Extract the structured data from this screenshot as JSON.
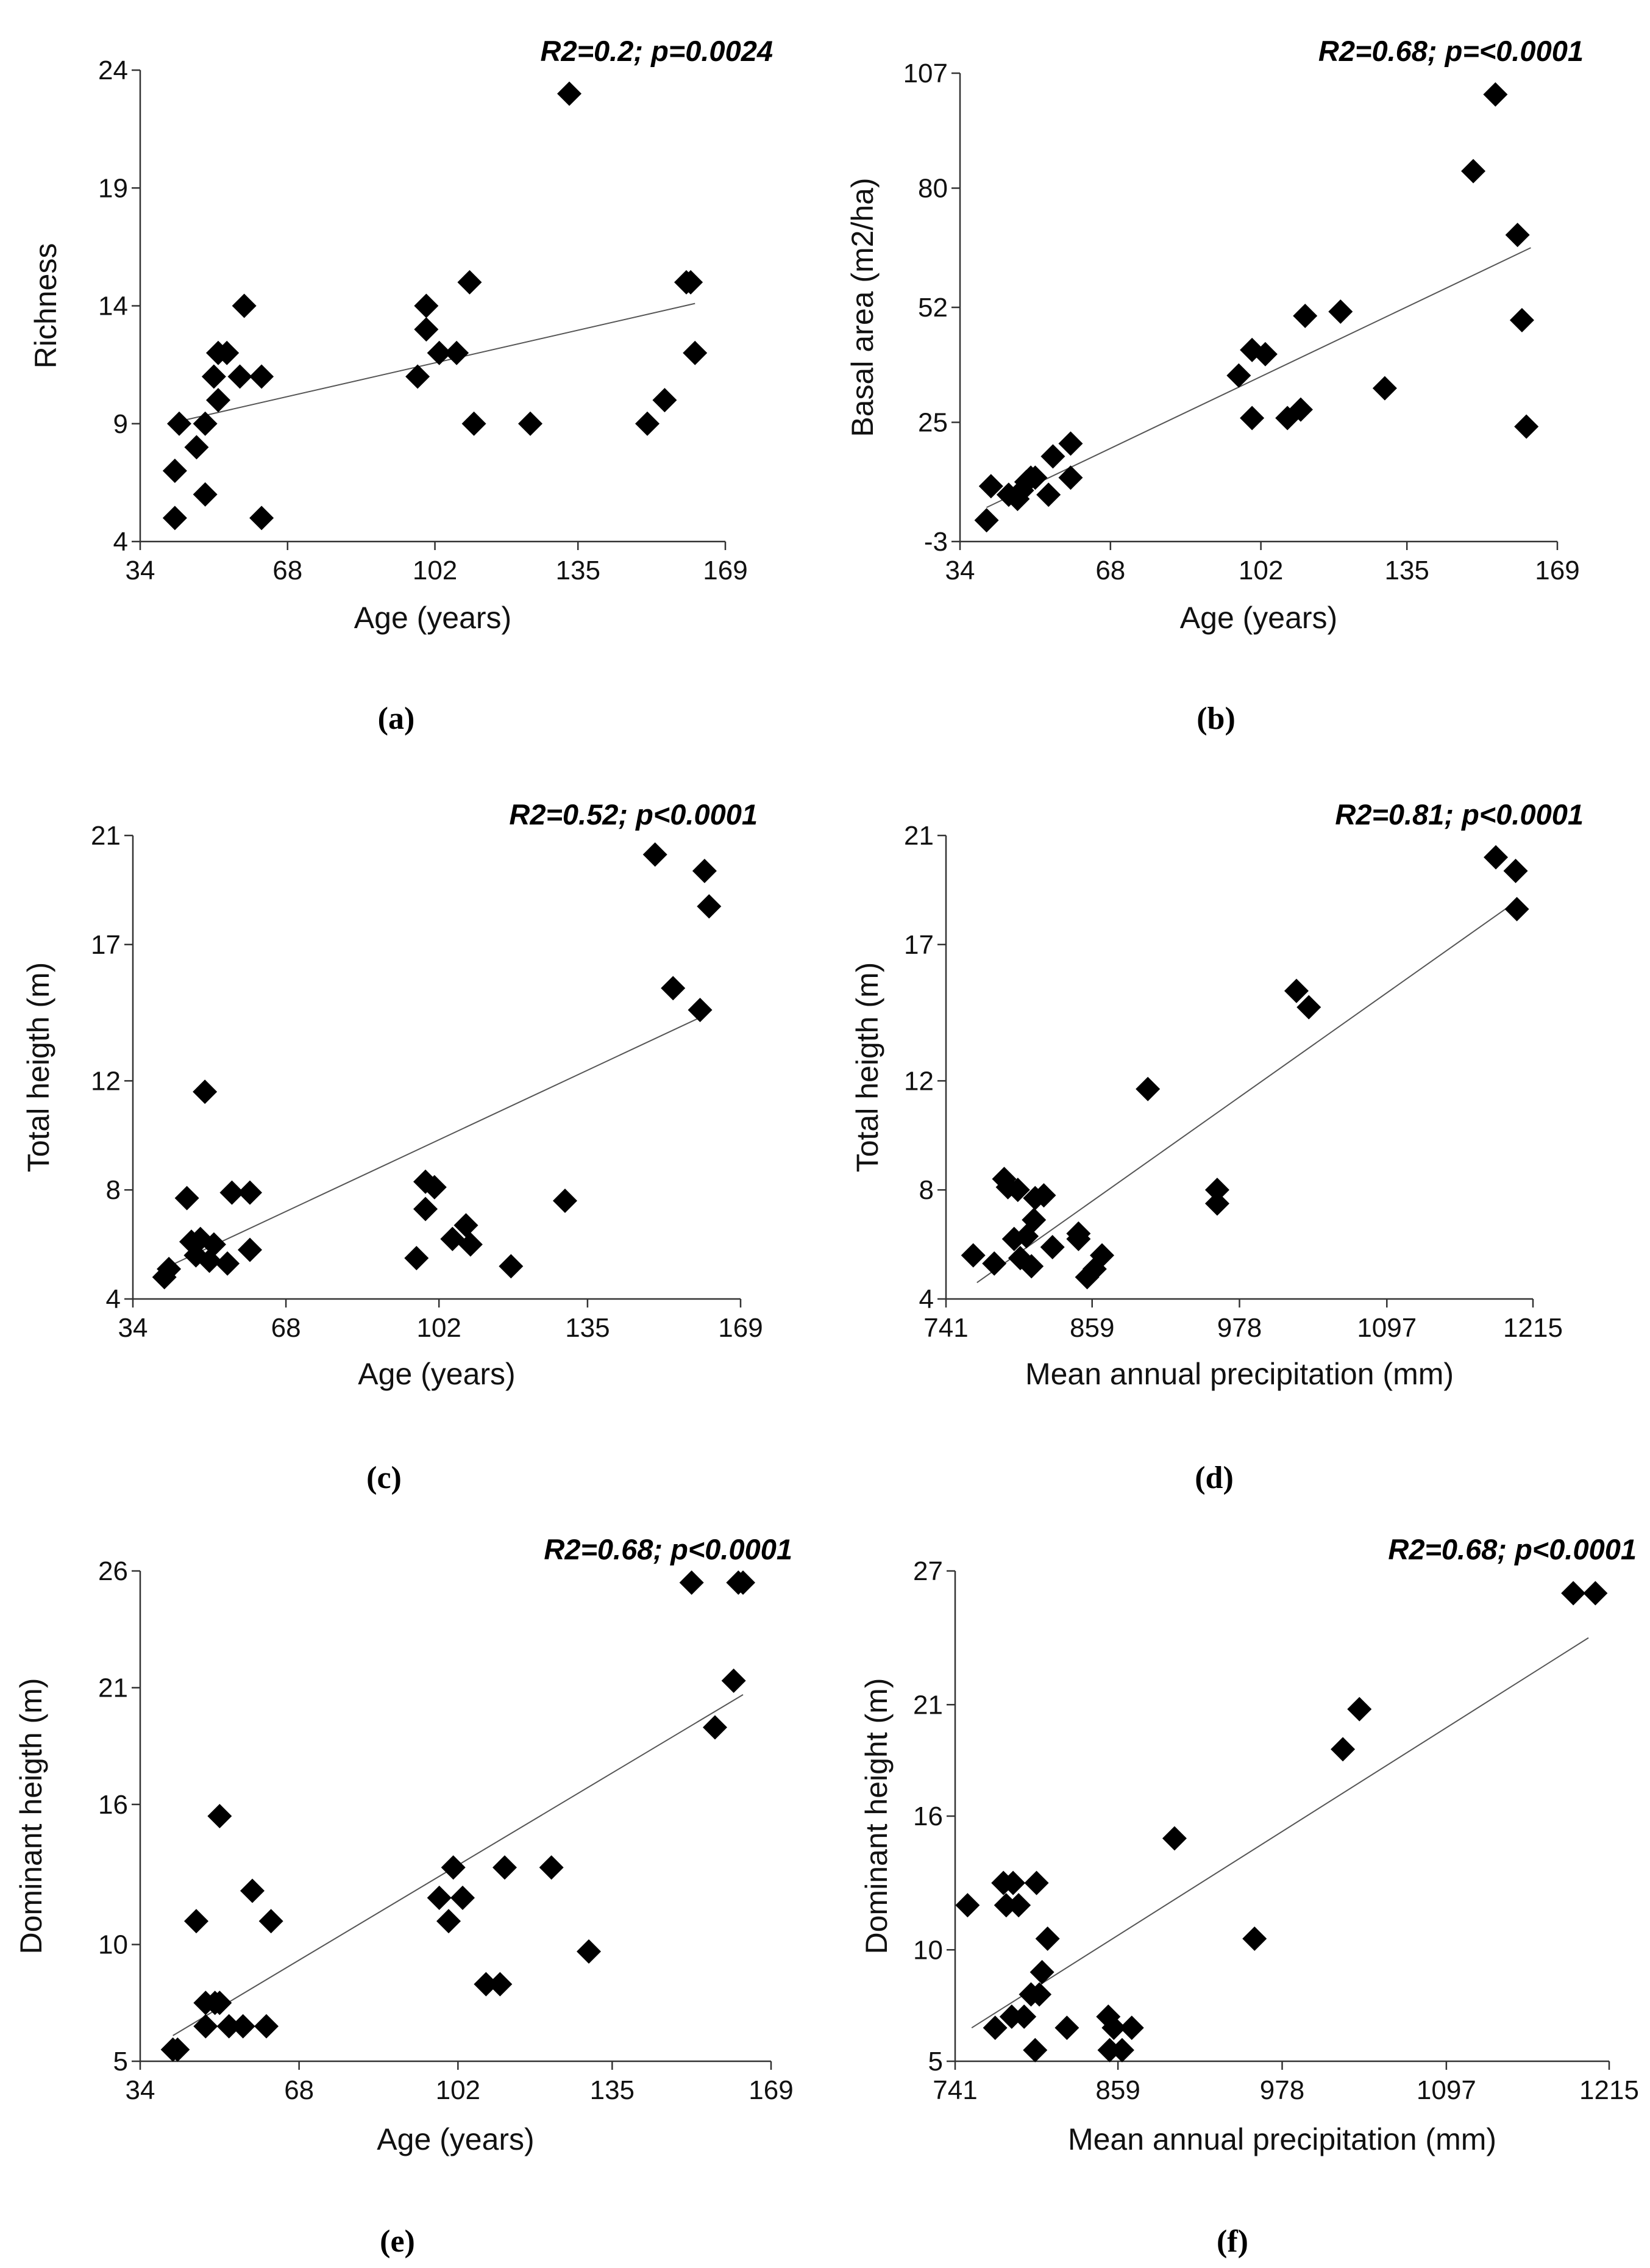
{
  "chart_data": [
    {
      "type": "scatter",
      "panel": "(a)",
      "stat": "R2=0.2; p=0.0024",
      "xlabel": "Age (years)",
      "ylabel": "Richness",
      "xticks": [
        34,
        68,
        102,
        135,
        169
      ],
      "yticks": [
        4,
        9,
        14,
        19,
        24
      ],
      "xlim": [
        34,
        169
      ],
      "ylim": [
        4,
        24
      ],
      "points": [
        [
          42,
          5
        ],
        [
          42,
          7
        ],
        [
          43,
          9
        ],
        [
          47,
          8
        ],
        [
          49,
          9
        ],
        [
          49,
          6
        ],
        [
          51,
          11
        ],
        [
          52,
          12
        ],
        [
          52,
          10
        ],
        [
          54,
          12
        ],
        [
          57,
          11
        ],
        [
          58,
          14
        ],
        [
          62,
          11
        ],
        [
          62,
          5
        ],
        [
          98,
          11
        ],
        [
          100,
          14
        ],
        [
          100,
          13
        ],
        [
          103,
          12
        ],
        [
          107,
          12
        ],
        [
          110,
          15
        ],
        [
          111,
          9
        ],
        [
          124,
          9
        ],
        [
          133,
          23
        ],
        [
          151,
          9
        ],
        [
          155,
          10
        ],
        [
          160,
          15
        ],
        [
          161,
          15
        ],
        [
          162,
          12
        ]
      ],
      "trendline": [
        [
          43,
          9.1
        ],
        [
          162,
          14.1
        ]
      ]
    },
    {
      "type": "scatter",
      "panel": "(b)",
      "stat": "R2=0.68; p=<0.0001",
      "xlabel": "Age (years)",
      "ylabel": "Basal area (m2/ha)",
      "xticks": [
        34,
        68,
        102,
        135,
        169
      ],
      "yticks": [
        -3,
        25,
        52,
        80,
        107
      ],
      "xlim": [
        34,
        169
      ],
      "ylim": [
        -3,
        107
      ],
      "points": [
        [
          40,
          2
        ],
        [
          41,
          10
        ],
        [
          45,
          8
        ],
        [
          47,
          7
        ],
        [
          48,
          9
        ],
        [
          49,
          11
        ],
        [
          50,
          12
        ],
        [
          51,
          12
        ],
        [
          54,
          8
        ],
        [
          55,
          17
        ],
        [
          59,
          20
        ],
        [
          59,
          12
        ],
        [
          97,
          36
        ],
        [
          100,
          42
        ],
        [
          100,
          26
        ],
        [
          103,
          41
        ],
        [
          108,
          26
        ],
        [
          111,
          28
        ],
        [
          112,
          50
        ],
        [
          120,
          51
        ],
        [
          130,
          33
        ],
        [
          150,
          84
        ],
        [
          155,
          102
        ],
        [
          160,
          69
        ],
        [
          161,
          49
        ],
        [
          162,
          24
        ]
      ],
      "trendline": [
        [
          40,
          5
        ],
        [
          163,
          66
        ]
      ]
    },
    {
      "type": "scatter",
      "panel": "(c)",
      "stat": "R2=0.52; p<0.0001",
      "xlabel": "Age (years)",
      "ylabel": "Total heigth (m)",
      "xticks": [
        34,
        68,
        102,
        135,
        169
      ],
      "yticks": [
        4,
        8,
        12,
        17,
        21
      ],
      "xlim": [
        34,
        169
      ],
      "ylim": [
        4,
        21
      ],
      "points": [
        [
          41,
          4.8
        ],
        [
          42,
          5.1
        ],
        [
          46,
          7.7
        ],
        [
          47,
          6.1
        ],
        [
          48,
          5.6
        ],
        [
          49,
          6.2
        ],
        [
          50,
          11.6
        ],
        [
          51,
          5.4
        ],
        [
          52,
          6
        ],
        [
          55,
          5.3
        ],
        [
          56,
          7.9
        ],
        [
          60,
          7.9
        ],
        [
          60,
          5.8
        ],
        [
          97,
          5.5
        ],
        [
          99,
          7.3
        ],
        [
          99,
          8.3
        ],
        [
          101,
          8.1
        ],
        [
          105,
          6.2
        ],
        [
          108,
          6.7
        ],
        [
          109,
          6
        ],
        [
          118,
          5.2
        ],
        [
          130,
          7.6
        ],
        [
          150,
          20.3
        ],
        [
          154,
          15.4
        ],
        [
          160,
          14.6
        ],
        [
          161,
          19.7
        ],
        [
          162,
          18.4
        ]
      ],
      "trendline": [
        [
          42,
          5.2
        ],
        [
          161,
          14.4
        ]
      ]
    },
    {
      "type": "scatter",
      "panel": "(d)",
      "stat": "R2=0.81; p<0.0001",
      "xlabel": "Mean annual precipitation (mm)",
      "ylabel": "Total heigth (m)",
      "xticks": [
        741,
        859,
        978,
        1097,
        1215
      ],
      "yticks": [
        4,
        8,
        12,
        17,
        21
      ],
      "xlim": [
        741,
        1215
      ],
      "ylim": [
        4,
        21
      ],
      "points": [
        [
          763,
          5.6
        ],
        [
          780,
          5.3
        ],
        [
          788,
          8.4
        ],
        [
          791,
          8.1
        ],
        [
          796,
          6.2
        ],
        [
          799,
          8
        ],
        [
          801,
          5.5
        ],
        [
          806,
          6.3
        ],
        [
          810,
          5.2
        ],
        [
          812,
          6.9
        ],
        [
          813,
          7.7
        ],
        [
          820,
          7.8
        ],
        [
          827,
          5.9
        ],
        [
          848,
          6.2
        ],
        [
          848,
          6.4
        ],
        [
          855,
          4.8
        ],
        [
          861,
          5.1
        ],
        [
          867,
          5.6
        ],
        [
          904,
          11.7
        ],
        [
          960,
          8
        ],
        [
          960,
          7.5
        ],
        [
          1024,
          15.3
        ],
        [
          1034,
          14.7
        ],
        [
          1185,
          20.2
        ],
        [
          1201,
          19.7
        ],
        [
          1202,
          18.3
        ]
      ],
      "trendline": [
        [
          766,
          4.6
        ],
        [
          1202,
          18.6
        ]
      ]
    },
    {
      "type": "scatter",
      "panel": "(e)",
      "stat": "R2=0.68; p<0.0001",
      "xlabel": "Age (years)",
      "ylabel": "Dominant heigth (m)",
      "xticks": [
        34,
        68,
        102,
        135,
        169
      ],
      "yticks": [
        5,
        10,
        16,
        21,
        26
      ],
      "xlim": [
        34,
        169
      ],
      "ylim": [
        5,
        26
      ],
      "points": [
        [
          41,
          5.5
        ],
        [
          42,
          5.5
        ],
        [
          46,
          11
        ],
        [
          48,
          7.5
        ],
        [
          48,
          6.5
        ],
        [
          50,
          7.5
        ],
        [
          51,
          7.5
        ],
        [
          51,
          15.5
        ],
        [
          53,
          6.5
        ],
        [
          56,
          6.5
        ],
        [
          58,
          12.3
        ],
        [
          61,
          6.5
        ],
        [
          62,
          11
        ],
        [
          98,
          12
        ],
        [
          100,
          11
        ],
        [
          101,
          13.3
        ],
        [
          103,
          12
        ],
        [
          108,
          8.3
        ],
        [
          111,
          8.3
        ],
        [
          112,
          13.3
        ],
        [
          122,
          13.3
        ],
        [
          130,
          9.7
        ],
        [
          152,
          25.5
        ],
        [
          157,
          19.3
        ],
        [
          161,
          21.3
        ],
        [
          162,
          25.5
        ],
        [
          163,
          25.5
        ]
      ],
      "trendline": [
        [
          41,
          6.1
        ],
        [
          163,
          20.7
        ]
      ]
    },
    {
      "type": "scatter",
      "panel": "(f)",
      "stat": "R2=0.68; p<0.0001",
      "xlabel": "Mean annual precipitation (mm)",
      "ylabel": "Dominant height (m)",
      "xticks": [
        741,
        859,
        978,
        1097,
        1215
      ],
      "yticks": [
        5,
        10,
        16,
        21,
        27
      ],
      "xlim": [
        741,
        1215
      ],
      "ylim": [
        5,
        27
      ],
      "points": [
        [
          750,
          12
        ],
        [
          770,
          6.5
        ],
        [
          776,
          13
        ],
        [
          778,
          12
        ],
        [
          783,
          13
        ],
        [
          787,
          12
        ],
        [
          782,
          7
        ],
        [
          791,
          7
        ],
        [
          796,
          8
        ],
        [
          799,
          5.5
        ],
        [
          800,
          13
        ],
        [
          802,
          8
        ],
        [
          804,
          9
        ],
        [
          808,
          10.5
        ],
        [
          822,
          6.5
        ],
        [
          852,
          7
        ],
        [
          853,
          5.5
        ],
        [
          856,
          6.5
        ],
        [
          862,
          5.5
        ],
        [
          869,
          6.5
        ],
        [
          900,
          15
        ],
        [
          958,
          10.5
        ],
        [
          1022,
          19
        ],
        [
          1034,
          20.8
        ],
        [
          1189,
          26
        ],
        [
          1205,
          26
        ]
      ],
      "trendline": [
        [
          753,
          6.5
        ],
        [
          1200,
          24
        ]
      ]
    }
  ]
}
